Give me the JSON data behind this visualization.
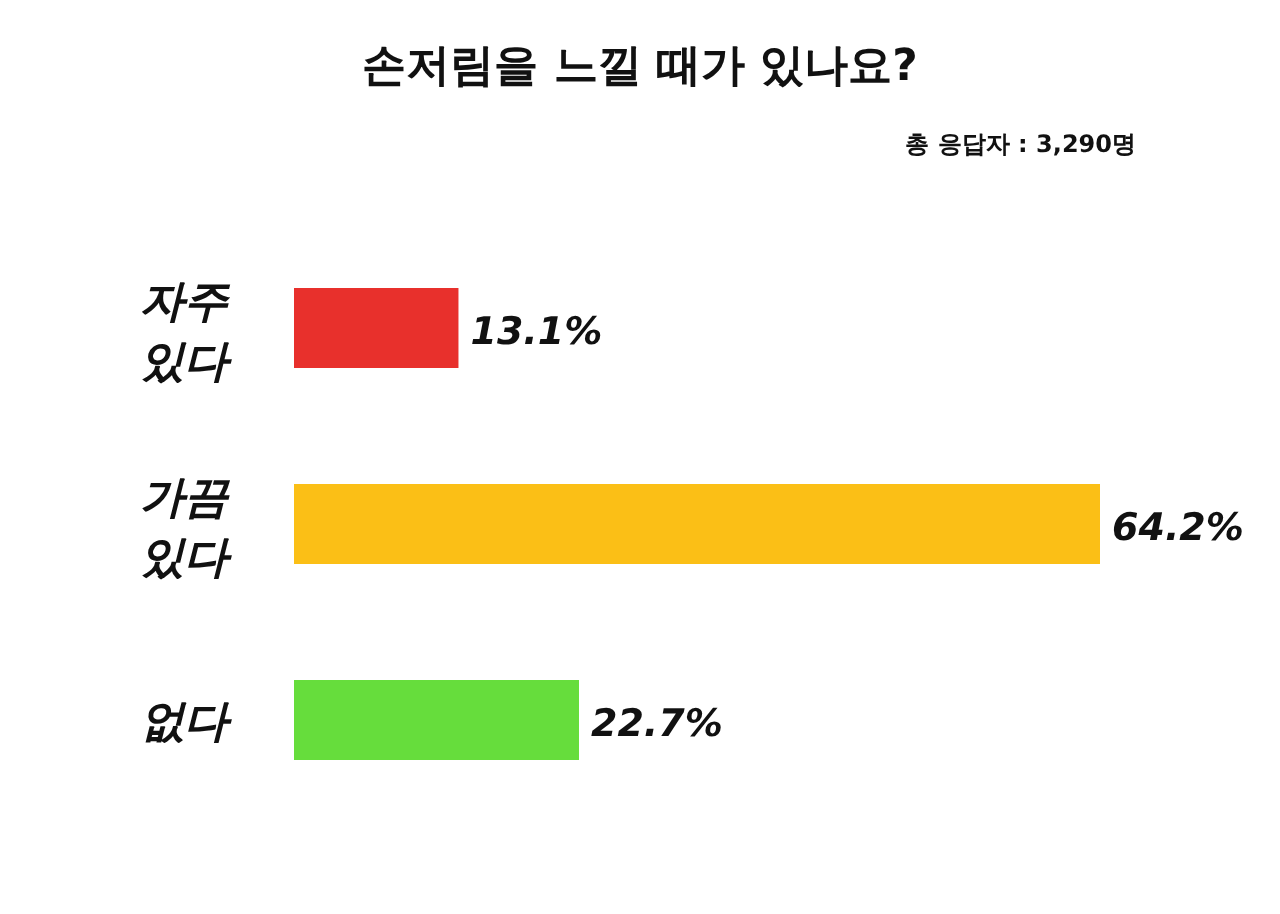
{
  "chart_data": {
    "type": "bar",
    "orientation": "horizontal",
    "title": "손저림을 느낄 때가 있나요?",
    "annotations": [
      "총 응답자 : 3,290명"
    ],
    "categories": [
      "자주 있다",
      "가끔 있다",
      "없다"
    ],
    "values": [
      13.1,
      64.2,
      22.7
    ],
    "value_labels": [
      "13.1%",
      "64.2%",
      "22.7%"
    ],
    "colors": [
      "#e8302c",
      "#fbbf16",
      "#66dd3c"
    ]
  }
}
